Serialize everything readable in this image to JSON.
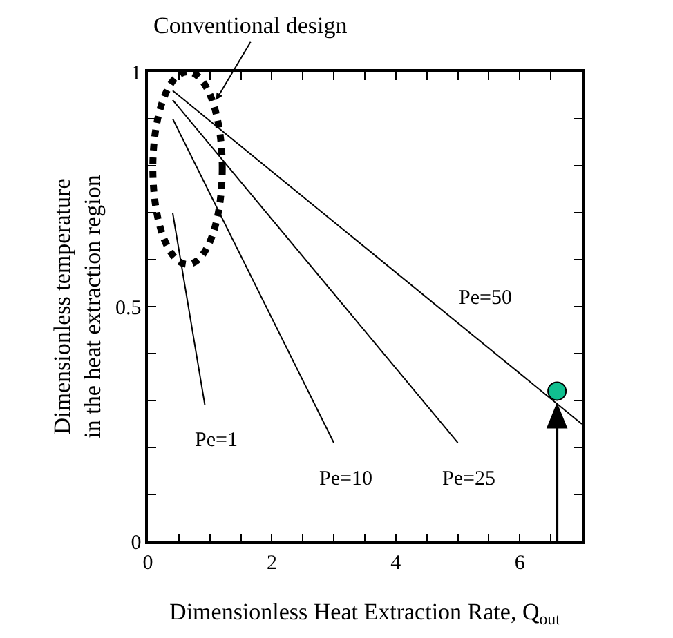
{
  "chart_data": {
    "type": "line",
    "xlabel": "Dimensionless Heat Extraction Rate, Q$_{out}$",
    "ylabel": "Dimensionless temperature\nin the heat extraction region",
    "xlim": [
      0,
      7
    ],
    "ylim": [
      0,
      1
    ],
    "xticks": [
      0,
      {
        "value": 0.5,
        "label": null
      },
      {
        "value": 1,
        "label": null
      },
      {
        "value": 1.5,
        "label": null
      },
      2,
      {
        "value": 2.5,
        "label": null
      },
      {
        "value": 3,
        "label": null
      },
      {
        "value": 3.5,
        "label": null
      },
      4,
      {
        "value": 4.5,
        "label": null
      },
      {
        "value": 5,
        "label": null
      },
      {
        "value": 5.5,
        "label": null
      },
      6,
      {
        "value": 6.5,
        "label": null
      }
    ],
    "yticks": [
      0,
      {
        "value": 0.1,
        "label": null
      },
      {
        "value": 0.2,
        "label": null
      },
      {
        "value": 0.3,
        "label": null
      },
      {
        "value": 0.4,
        "label": null
      },
      0.5,
      {
        "value": 0.6,
        "label": null
      },
      {
        "value": 0.7,
        "label": null
      },
      {
        "value": 0.8,
        "label": null
      },
      {
        "value": 0.9,
        "label": null
      },
      1
    ],
    "legend": false,
    "line_style": "solid",
    "series": [
      {
        "name": "Pe=1",
        "color": "#000000",
        "x": [
          0.4,
          0.92
        ],
        "values": [
          0.7,
          0.29
        ]
      },
      {
        "name": "Pe=10",
        "color": "#000000",
        "x": [
          0.4,
          3.0
        ],
        "values": [
          0.9,
          0.21
        ]
      },
      {
        "name": "Pe=25",
        "color": "#000000",
        "x": [
          0.4,
          5.0
        ],
        "values": [
          0.94,
          0.21
        ]
      },
      {
        "name": "Pe=50",
        "color": "#000000",
        "x": [
          0.4,
          7.0
        ],
        "values": [
          0.96,
          0.25
        ]
      },
      {
        "type": "scatter",
        "color": "#10c090",
        "marker": "circle",
        "x": [
          6.6
        ],
        "values": [
          0.32
        ]
      }
    ],
    "ref_lines": [
      {
        "axis": "x",
        "value": 6.6,
        "color": "#000000",
        "line_style": "solid"
      }
    ],
    "annotations": [
      "Conventional design"
    ]
  }
}
